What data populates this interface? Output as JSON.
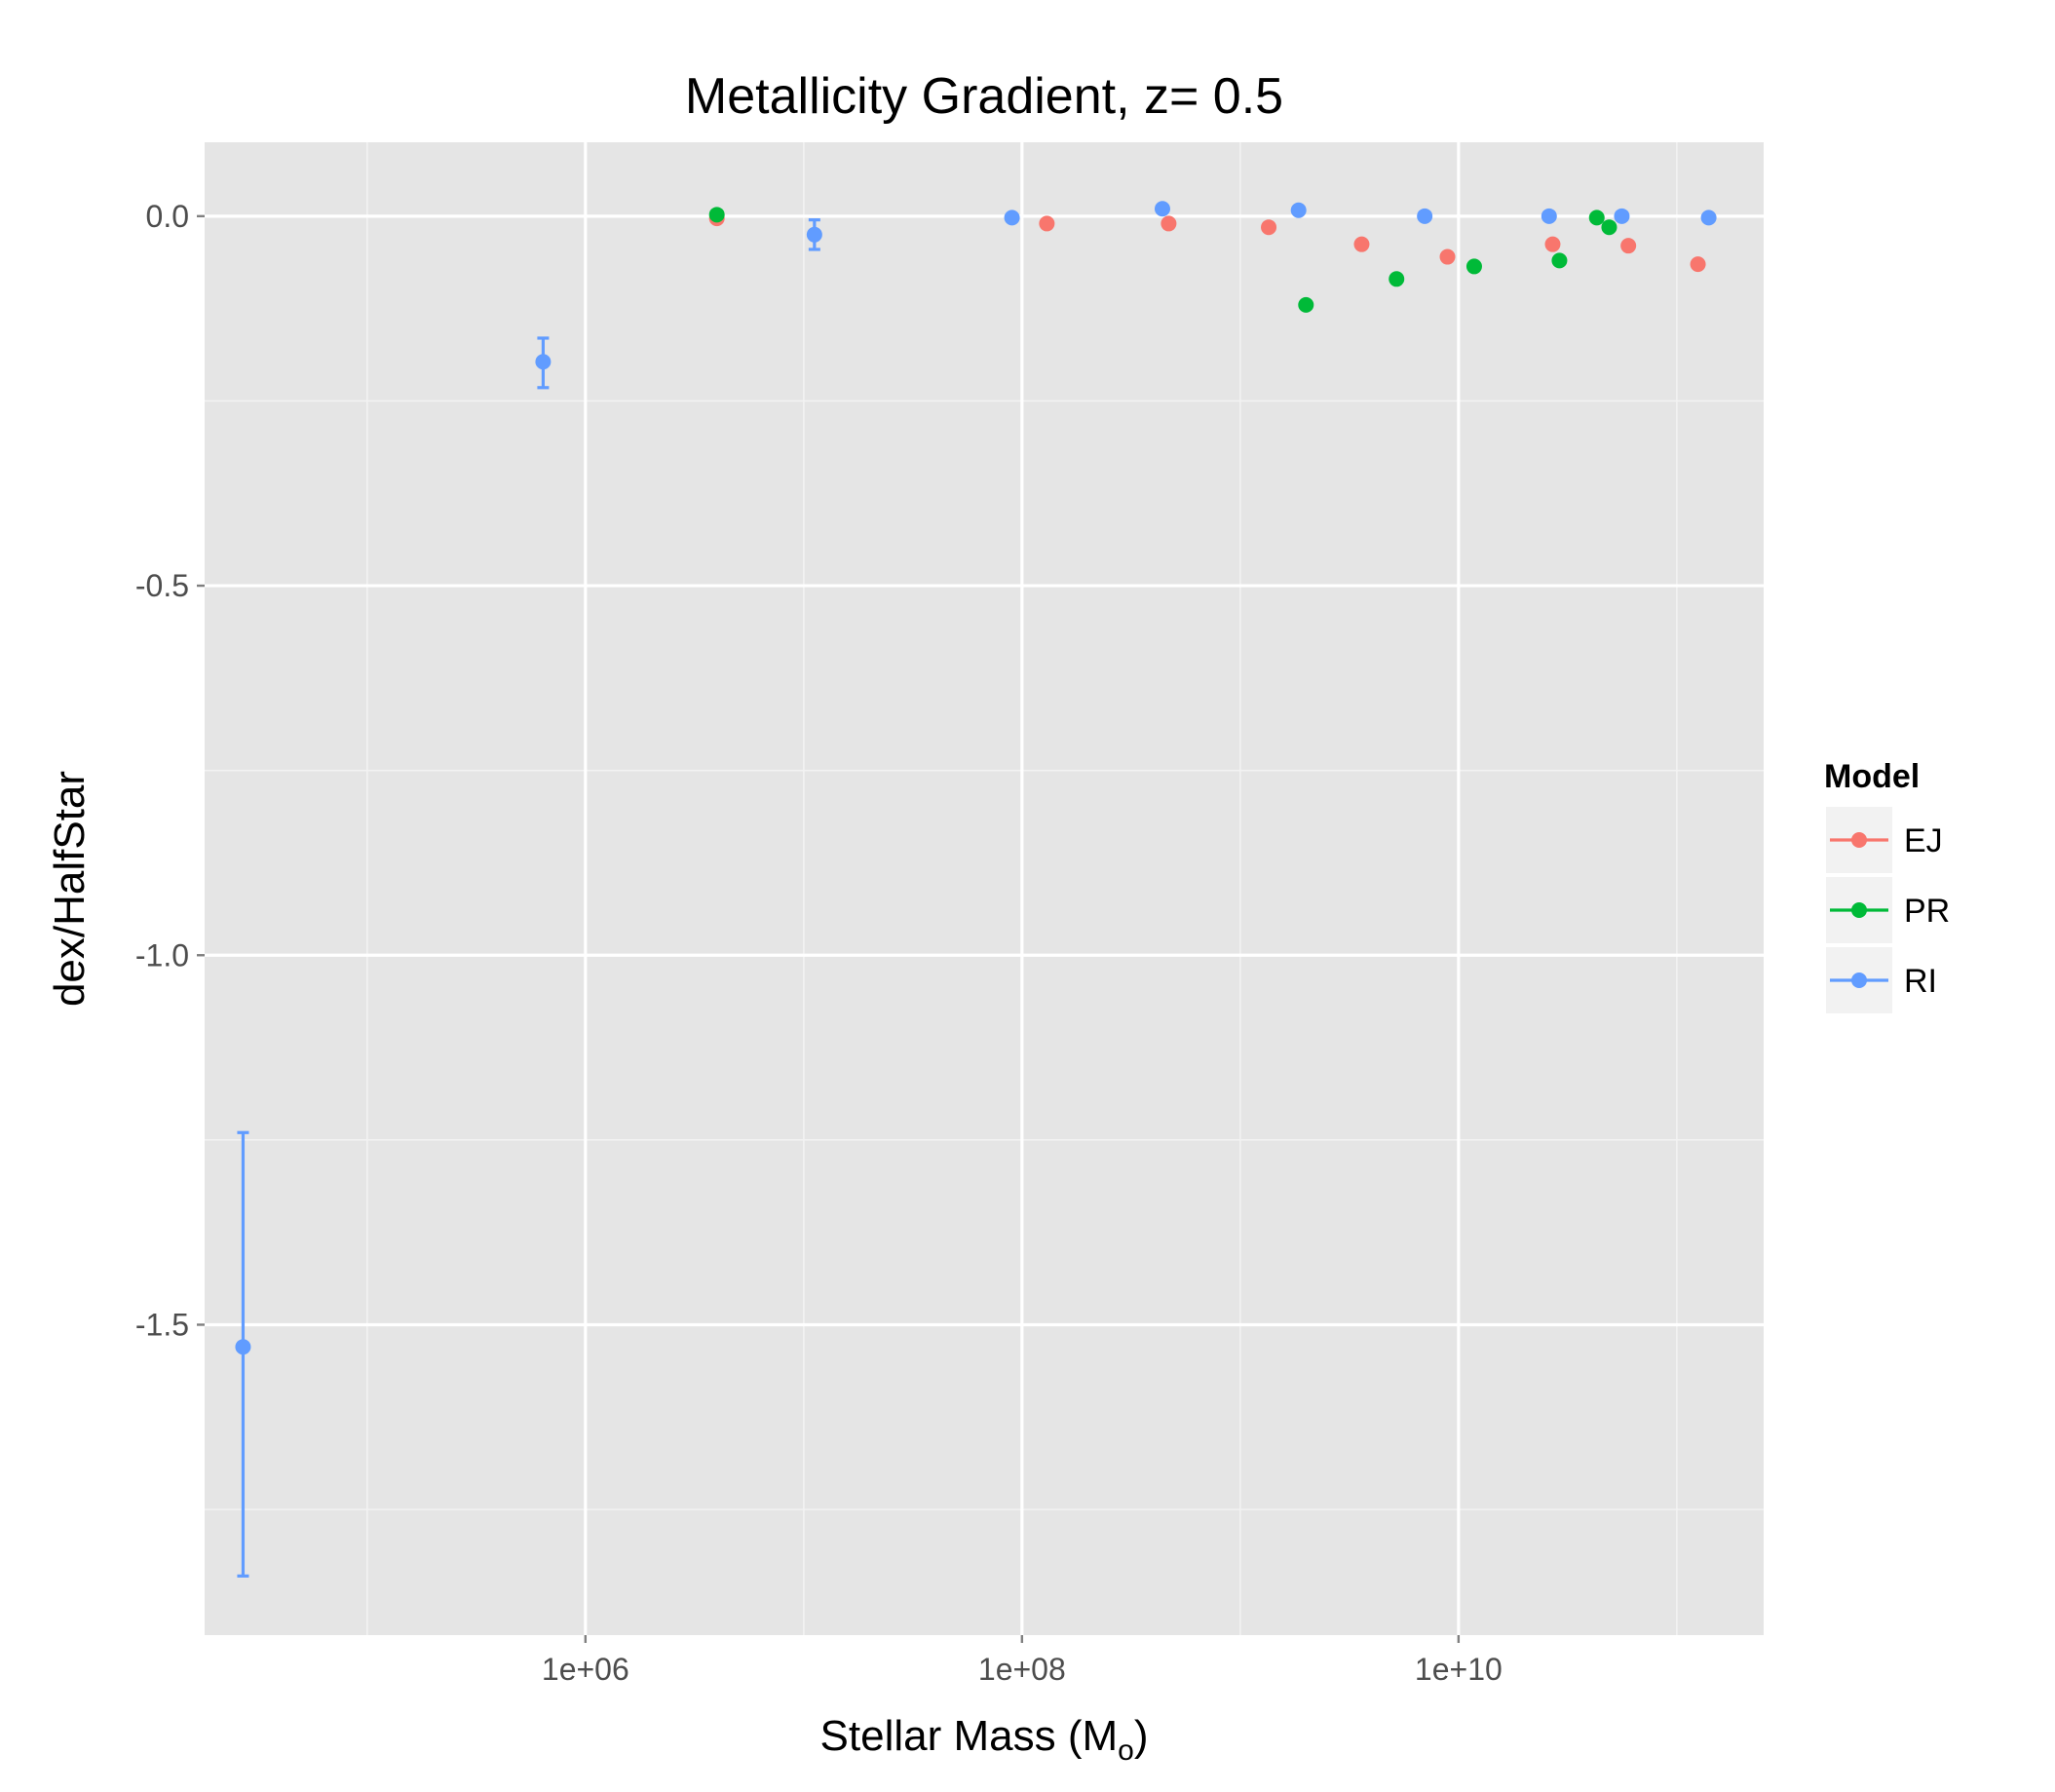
{
  "chart_data": {
    "type": "scatter",
    "title": "Metallicity Gradient, z= 0.5",
    "xlabel": "Stellar Mass (M",
    "xlabel_subscript": "o",
    "xlabel_close": ")",
    "ylabel": "dex/HalfStar",
    "x_scale": "log10",
    "xlim": [
      18000,
      250000000000
    ],
    "ylim": [
      -1.92,
      0.1
    ],
    "x_ticks": [
      {
        "value": 1000000,
        "label": "1e+06"
      },
      {
        "value": 100000000,
        "label": "1e+08"
      },
      {
        "value": 10000000000,
        "label": "1e+10"
      }
    ],
    "y_ticks": [
      {
        "value": 0.0,
        "label": "0.0"
      },
      {
        "value": -0.5,
        "label": "-0.5"
      },
      {
        "value": -1.0,
        "label": "-1.0"
      },
      {
        "value": -1.5,
        "label": "-1.5"
      }
    ],
    "grid": true,
    "legend": {
      "title": "Model",
      "position": "right"
    },
    "series": [
      {
        "name": "EJ",
        "color": "#F8766D",
        "points": [
          {
            "x": 4000000,
            "y": -0.003
          },
          {
            "x": 130000000,
            "y": -0.01
          },
          {
            "x": 470000000,
            "y": -0.01
          },
          {
            "x": 1350000000,
            "y": -0.015
          },
          {
            "x": 3600000000,
            "y": -0.038
          },
          {
            "x": 8900000000,
            "y": -0.055
          },
          {
            "x": 27000000000,
            "y": -0.038
          },
          {
            "x": 60000000000,
            "y": -0.04
          },
          {
            "x": 125000000000,
            "y": -0.065
          }
        ]
      },
      {
        "name": "PR",
        "color": "#00BA38",
        "points": [
          {
            "x": 4000000,
            "y": 0.002
          },
          {
            "x": 2000000000,
            "y": -0.12
          },
          {
            "x": 5200000000,
            "y": -0.085
          },
          {
            "x": 11800000000,
            "y": -0.068
          },
          {
            "x": 29000000000,
            "y": -0.06
          },
          {
            "x": 43000000000,
            "y": -0.002
          },
          {
            "x": 49000000000,
            "y": -0.015
          }
        ]
      },
      {
        "name": "RI",
        "color": "#619CFF",
        "points": [
          {
            "x": 27000,
            "y": -1.53,
            "ymin": -1.84,
            "ymax": -1.24
          },
          {
            "x": 640000,
            "y": -0.197,
            "ymin": -0.232,
            "ymax": -0.165
          },
          {
            "x": 11200000,
            "y": -0.025,
            "ymin": -0.045,
            "ymax": -0.005
          },
          {
            "x": 90000000,
            "y": -0.002
          },
          {
            "x": 440000000,
            "y": 0.01
          },
          {
            "x": 1850000000,
            "y": 0.008
          },
          {
            "x": 7000000000,
            "y": 0.0
          },
          {
            "x": 26000000000,
            "y": 0.0
          },
          {
            "x": 56000000000,
            "y": 0.0
          },
          {
            "x": 140000000000,
            "y": -0.002
          }
        ]
      }
    ]
  }
}
